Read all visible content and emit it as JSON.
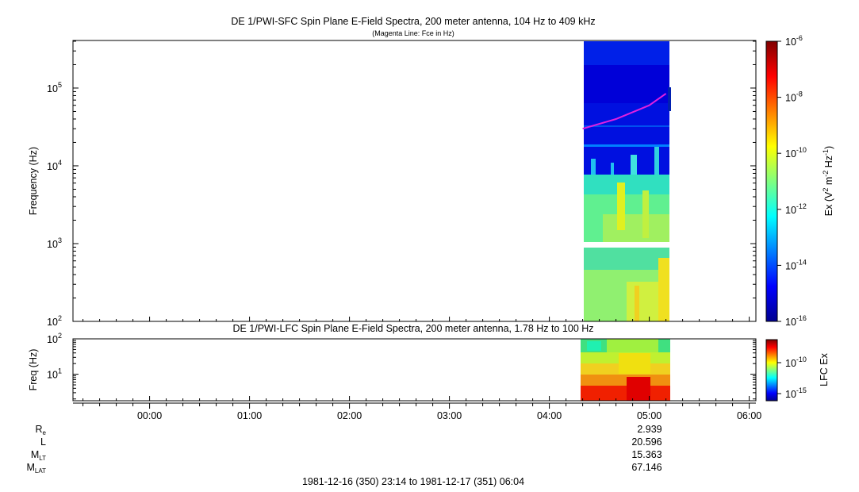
{
  "chart_data": [
    {
      "type": "heatmap",
      "title": "DE 1/PWI-SFC  Spin Plane E-Field Spectra, 200 meter antenna, 104 Hz to 409 kHz",
      "subtitle": "(Magenta Line: Fce in Hz)",
      "ylabel": "Frequency (Hz)",
      "y_scale": "log",
      "ylim": [
        100,
        409000
      ],
      "y_ticks": [
        {
          "value": 100,
          "base": "10",
          "exp": "2"
        },
        {
          "value": 1000,
          "base": "10",
          "exp": "3"
        },
        {
          "value": 10000,
          "base": "10",
          "exp": "4"
        },
        {
          "value": 100000,
          "base": "10",
          "exp": "5"
        }
      ],
      "colorbar": {
        "label_pre": "Ex (V",
        "label_exp1": "2",
        "label_mid": " m",
        "label_exp2": "-2",
        "label_mid2": " Hz",
        "label_exp3": "-1",
        "label_post": ")",
        "scale": "log",
        "range": [
          1e-16,
          1e-06
        ],
        "ticks": [
          {
            "value": 1e-06,
            "base": "10",
            "exp": "-6"
          },
          {
            "value": 1e-08,
            "base": "10",
            "exp": "-8"
          },
          {
            "value": 1e-10,
            "base": "10",
            "exp": "-10"
          },
          {
            "value": 1e-12,
            "base": "10",
            "exp": "-12"
          },
          {
            "value": 1e-14,
            "base": "10",
            "exp": "-14"
          },
          {
            "value": 1e-16,
            "base": "10",
            "exp": "-16"
          }
        ]
      },
      "data_start": "04:20",
      "data_end": "05:12",
      "series": [
        {
          "name": "Fce",
          "color": "#e020e0",
          "x": [
            "04:20",
            "04:40",
            "05:00",
            "05:10"
          ],
          "y": [
            30000,
            40000,
            60000,
            85000
          ]
        }
      ]
    },
    {
      "type": "heatmap",
      "title": "DE 1/PWI-LFC  Spin Plane E-Field Spectra, 200 meter antenna, 1.78 Hz to 100 Hz",
      "ylabel": "Freq (Hz)",
      "y_scale": "log",
      "ylim": [
        1.78,
        100
      ],
      "y_ticks": [
        {
          "value": 10,
          "base": "10",
          "exp": "1"
        },
        {
          "value": 100,
          "base": "10",
          "exp": "2"
        }
      ],
      "colorbar": {
        "label": "LFC Ex",
        "scale": "log",
        "ticks": [
          {
            "value": 1e-10,
            "base": "10",
            "exp": "-10"
          },
          {
            "value": 1e-15,
            "base": "10",
            "exp": "-15"
          }
        ]
      },
      "data_start": "04:20",
      "data_end": "05:12"
    }
  ],
  "time_axis": {
    "range": [
      "23:14",
      "06:04"
    ],
    "ticks": [
      "00:00",
      "01:00",
      "02:00",
      "03:00",
      "04:00",
      "05:00",
      "06:00"
    ]
  },
  "ephemeris": {
    "labels": [
      {
        "base": "R",
        "sub": "e"
      },
      {
        "base": "L",
        "sub": ""
      },
      {
        "base": "M",
        "sub": "LT"
      },
      {
        "base": "M",
        "sub": "LAT"
      }
    ],
    "values": [
      "2.939",
      "20.596",
      "15.363",
      "67.146"
    ]
  },
  "footer": "1981-12-16 (350) 23:14 to 1981-12-17 (351) 06:04"
}
